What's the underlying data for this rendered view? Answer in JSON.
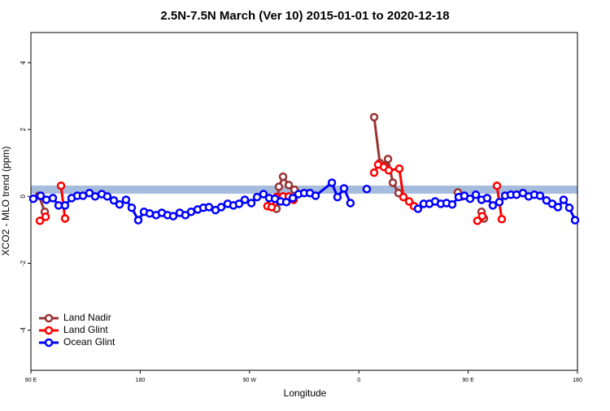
{
  "chart_data": {
    "type": "line",
    "title": "2.5N-7.5N March (Ver 10)   2015-01-01 to 2020-12-18",
    "x_label": "Longitude",
    "y_label": "XCO2 - MLO trend (ppm)",
    "xlim": [
      90,
      540
    ],
    "ylim": [
      -5.2,
      4.9
    ],
    "xticks": [
      {
        "value": 90,
        "label": "90 E"
      },
      180,
      {
        "value": 270,
        "label": "90 W"
      },
      {
        "value": 360,
        "label": "0"
      },
      {
        "value": 450,
        "label": "90 E"
      },
      {
        "value": 540,
        "label": "180"
      }
    ],
    "yticks": [
      -4,
      -2,
      0,
      2,
      4
    ],
    "legend": "bottom-left",
    "series": [
      {
        "name": "Land Nadir",
        "color": "#993333",
        "x": [
          96.7,
          101.4,
          null,
          292.2,
          294.2,
          297.6,
          302.3,
          307.0,
          null,
          372.6,
          377.3,
          381.3,
          384.0,
          388.0,
          392.7,
          null,
          441.5,
          444.9,
          null,
          461.0,
          463.0
        ],
        "values": [
          0.02,
          -0.46,
          null,
          -0.37,
          0.29,
          0.59,
          0.34,
          0.2,
          null,
          2.37,
          1.0,
          0.93,
          1.12,
          0.41,
          0.1,
          null,
          0.12,
          0,
          null,
          -0.46,
          -0.66
        ]
      },
      {
        "name": "Land Glint",
        "color": "#ff0000",
        "x": [
          97.4,
          102.1,
          null,
          114.8,
          118.1,
          null,
          284.8,
          288.2,
          292.2,
          297.6,
          302.3,
          306.3,
          null,
          372.6,
          375.9,
          380.6,
          384.6,
          393.3,
          396.7,
          401.4,
          405.4,
          null,
          457.6,
          461.6,
          null,
          473.7,
          477.7
        ],
        "values": [
          -0.73,
          -0.61,
          null,
          0.32,
          -0.66,
          null,
          -0.29,
          -0.32,
          -0.02,
          0,
          0,
          -0.1,
          null,
          0.71,
          0.95,
          0.88,
          0.78,
          0.83,
          -0.02,
          -0.15,
          -0.29,
          null,
          -0.73,
          -0.59,
          null,
          0.32,
          -0.68
        ]
      },
      {
        "name": "Ocean Glint",
        "color": "#0000ff",
        "x": [
          92.0,
          98.0,
          102.7,
          108.1,
          112.8,
          118.1,
          123.5,
          128.2,
          132.9,
          138.2,
          142.9,
          148.3,
          152.9,
          158.3,
          163.0,
          168.3,
          173.0,
          178.4,
          183.1,
          187.8,
          193.1,
          197.8,
          202.5,
          207.2,
          212.5,
          217.2,
          221.9,
          227.3,
          232.0,
          236.6,
          242.0,
          246.7,
          252.0,
          256.7,
          261.4,
          266.1,
          271.5,
          276.2,
          281.5,
          286.2,
          290.9,
          295.6,
          300.3,
          305.6,
          310.3,
          315.0,
          319.7,
          324.4,
          337.8,
          342.4,
          347.8,
          353.1,
          null,
          366.5,
          null,
          408.7,
          413.4,
          418.1,
          422.8,
          427.5,
          432.2,
          436.9,
          442.2,
          446.9,
          451.6,
          456.3,
          461.0,
          465.6,
          470.3,
          475.7,
          480.4,
          485.1,
          489.8,
          495.1,
          499.8,
          504.5,
          509.2,
          514.5,
          519.2,
          523.9,
          528.6,
          533.3,
          538.0
        ],
        "values": [
          -0.07,
          0.02,
          -0.1,
          -0.05,
          -0.27,
          -0.27,
          -0.05,
          0.02,
          0.02,
          0.1,
          0,
          0.07,
          0,
          -0.12,
          -0.24,
          -0.1,
          -0.34,
          -0.71,
          -0.46,
          -0.51,
          -0.56,
          -0.49,
          -0.56,
          -0.59,
          -0.49,
          -0.56,
          -0.46,
          -0.39,
          -0.34,
          -0.32,
          -0.41,
          -0.32,
          -0.22,
          -0.27,
          -0.22,
          -0.1,
          -0.2,
          -0.02,
          0.07,
          -0.05,
          -0.07,
          -0.15,
          -0.17,
          -0.05,
          0.07,
          0.1,
          0.1,
          0.02,
          0.41,
          -0.02,
          0.24,
          -0.2,
          null,
          0.22,
          null,
          -0.37,
          -0.22,
          -0.22,
          -0.15,
          -0.22,
          -0.2,
          -0.24,
          -0.02,
          0.02,
          -0.07,
          0.05,
          -0.1,
          -0.05,
          -0.27,
          -0.17,
          0.02,
          0.05,
          0.05,
          0.1,
          0,
          0.05,
          0.02,
          -0.12,
          -0.22,
          -0.32,
          -0.1,
          -0.34,
          -0.71
        ]
      }
    ]
  }
}
